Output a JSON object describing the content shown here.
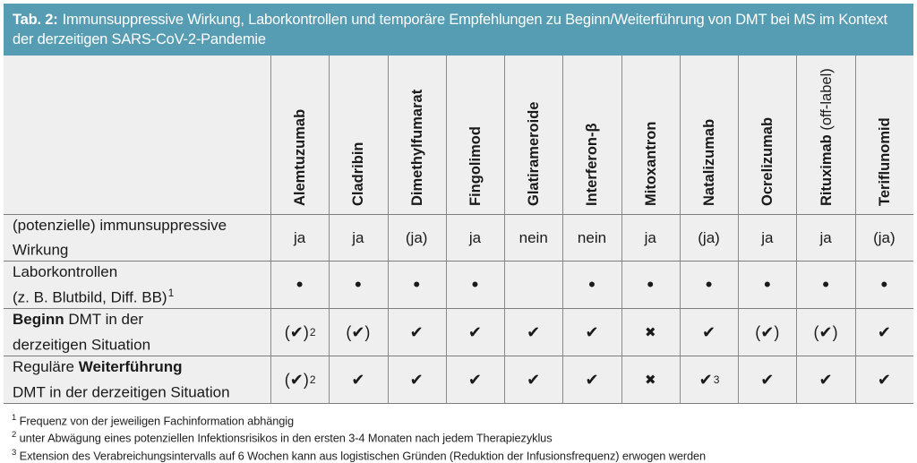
{
  "caption": {
    "tag": "Tab. 2:",
    "title": "Immunsuppressive Wirkung, Laborkontrollen und temporäre Empfehlungen zu Beginn/Weiterführung von DMT bei MS im Kontext der derzeitigen SARS-CoV-2-Pandemie"
  },
  "colors": {
    "bar_teal": "#569cb2",
    "table_bg": "#efefef",
    "grid_line": "#8b8b8b",
    "text": "#1a1a1a"
  },
  "table": {
    "columns": [
      {
        "name": "Alemtuzumab",
        "suffix": ""
      },
      {
        "name": "Cladribin",
        "suffix": ""
      },
      {
        "name": "Dimethylfumarat",
        "suffix": ""
      },
      {
        "name": "Fingolimod",
        "suffix": ""
      },
      {
        "name": "Glatirameroide",
        "suffix": ""
      },
      {
        "name": "Interferon-β",
        "suffix": ""
      },
      {
        "name": "Mitoxantron",
        "suffix": ""
      },
      {
        "name": "Natalizumab",
        "suffix": ""
      },
      {
        "name": "Ocrelizumab",
        "suffix": ""
      },
      {
        "name": "Rituximab",
        "suffix": " (off-label)"
      },
      {
        "name": "Teriflunomid",
        "suffix": ""
      }
    ],
    "rows": [
      {
        "label": {
          "l1": {
            "pre": "(potenzielle) immunsuppressive"
          },
          "l2": {
            "pre": "Wirkung"
          }
        },
        "cells": [
          {
            "m": "ja"
          },
          {
            "m": "ja"
          },
          {
            "m": "(ja)"
          },
          {
            "m": "ja"
          },
          {
            "m": "nein"
          },
          {
            "m": "nein"
          },
          {
            "m": "ja"
          },
          {
            "m": "(ja)"
          },
          {
            "m": "ja"
          },
          {
            "m": "ja"
          },
          {
            "m": "(ja)"
          }
        ]
      },
      {
        "label": {
          "l1": {
            "pre": "Laborkontrollen"
          },
          "l2": {
            "pre": "(z. B. Blutbild, Diff. BB)",
            "sup": "1"
          }
        },
        "cells": [
          {
            "m": "•"
          },
          {
            "m": "•"
          },
          {
            "m": "•"
          },
          {
            "m": "•"
          },
          {
            "m": ""
          },
          {
            "m": "•"
          },
          {
            "m": "•"
          },
          {
            "m": "•"
          },
          {
            "m": "•"
          },
          {
            "m": "•"
          },
          {
            "m": "•"
          }
        ]
      },
      {
        "label": {
          "l1": {
            "bold": "Beginn",
            "post": " DMT in der"
          },
          "l2": {
            "pre": "derzeitigen Situation"
          }
        },
        "cells": [
          {
            "m": "(✔)",
            "s": "2"
          },
          {
            "m": "(✔)"
          },
          {
            "m": "✔"
          },
          {
            "m": "✔"
          },
          {
            "m": "✔"
          },
          {
            "m": "✔"
          },
          {
            "m": "✖"
          },
          {
            "m": "✔"
          },
          {
            "m": "(✔)"
          },
          {
            "m": "(✔)"
          },
          {
            "m": "✔"
          }
        ]
      },
      {
        "label": {
          "l1": {
            "pre": "Reguläre ",
            "bold": "Weiterführung"
          },
          "l2": {
            "pre": "DMT in der derzeitigen Situation"
          }
        },
        "cells": [
          {
            "m": "(✔)",
            "s": "2"
          },
          {
            "m": "✔"
          },
          {
            "m": "✔"
          },
          {
            "m": "✔"
          },
          {
            "m": "✔"
          },
          {
            "m": "✔"
          },
          {
            "m": "✖"
          },
          {
            "m": "✔",
            "s": "3"
          },
          {
            "m": "✔"
          },
          {
            "m": "✔"
          },
          {
            "m": "✔"
          }
        ]
      }
    ]
  },
  "footnotes": [
    {
      "n": "1",
      "text": "Frequenz von der jeweiligen Fachinformation abhängig"
    },
    {
      "n": "2",
      "text": "unter Abwägung eines potenziellen Infektionsrisikos in den ersten 3-4 Monaten nach jedem Therapiezyklus"
    },
    {
      "n": "3",
      "text": "Extension des Verabreichungsintervalls auf 6 Wochen kann aus logistischen Gründen (Reduktion der Infusionsfrequenz) erwogen werden"
    }
  ]
}
